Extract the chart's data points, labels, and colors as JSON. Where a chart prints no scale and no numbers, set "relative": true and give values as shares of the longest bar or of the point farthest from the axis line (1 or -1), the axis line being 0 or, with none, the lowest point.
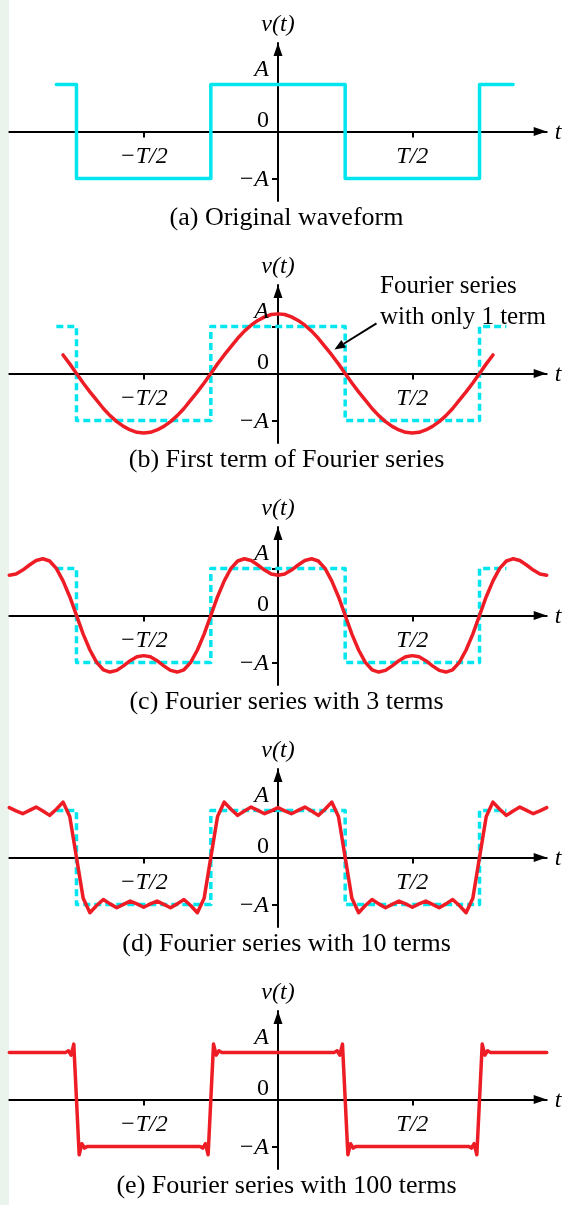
{
  "chart_data": [
    {
      "type": "line",
      "title": "(a) Original waveform",
      "xlabel": "t",
      "ylabel": "v(t)",
      "relative": true,
      "marker": "none",
      "categories": [
        null,
        null,
        null,
        null,
        null,
        null,
        null,
        null,
        null,
        null,
        null,
        null,
        null,
        null,
        null,
        null,
        null,
        null,
        null,
        null,
        "−T/2",
        null,
        null,
        null,
        null,
        null,
        null,
        null,
        null,
        null,
        null,
        null,
        null,
        null,
        null,
        null,
        null,
        null,
        null,
        null,
        null,
        null,
        null,
        null,
        null,
        null,
        null,
        null,
        null,
        null,
        null,
        null,
        null,
        null,
        null,
        null,
        null,
        null,
        null,
        null,
        "T/2",
        null,
        null,
        null,
        null,
        null,
        null,
        null,
        null,
        null,
        null,
        null,
        null,
        null,
        null,
        null,
        null,
        null,
        null,
        null,
        null
      ],
      "annotations": [
        "A",
        "0",
        "−A"
      ],
      "series": [
        {
          "type": "step",
          "color": "#00e5ee",
          "line_style": "solid",
          "values": [
            null,
            null,
            null,
            null,
            null,
            null,
            null,
            1,
            1,
            1,
            -1,
            -1,
            -1,
            -1,
            -1,
            -1,
            -1,
            -1,
            -1,
            -1,
            -1,
            -1,
            -1,
            -1,
            -1,
            -1,
            -1,
            -1,
            -1,
            -1,
            1,
            1,
            1,
            1,
            1,
            1,
            1,
            1,
            1,
            1,
            1,
            1,
            1,
            1,
            1,
            1,
            1,
            1,
            1,
            1,
            -1,
            -1,
            -1,
            -1,
            -1,
            -1,
            -1,
            -1,
            -1,
            -1,
            -1,
            -1,
            -1,
            -1,
            -1,
            -1,
            -1,
            -1,
            -1,
            -1,
            1,
            1,
            1,
            1,
            1,
            1,
            null,
            null,
            null,
            null,
            null
          ]
        }
      ]
    },
    {
      "type": "line",
      "title": "(b) First term of Fourier series",
      "xlabel": "t",
      "ylabel": "v(t)",
      "relative": true,
      "marker": "none",
      "categories": [
        null,
        null,
        null,
        null,
        null,
        null,
        null,
        null,
        null,
        null,
        null,
        null,
        null,
        null,
        null,
        null,
        null,
        null,
        null,
        null,
        "−T/2",
        null,
        null,
        null,
        null,
        null,
        null,
        null,
        null,
        null,
        null,
        null,
        null,
        null,
        null,
        null,
        null,
        null,
        null,
        null,
        null,
        null,
        null,
        null,
        null,
        null,
        null,
        null,
        null,
        null,
        null,
        null,
        null,
        null,
        null,
        null,
        null,
        null,
        null,
        null,
        "T/2",
        null,
        null,
        null,
        null,
        null,
        null,
        null,
        null,
        null,
        null,
        null,
        null,
        null,
        null,
        null,
        null,
        null,
        null,
        null,
        null
      ],
      "annotations": [
        "A",
        "0",
        "−A",
        "Fourier series\nwith only 1 term"
      ],
      "series": [
        {
          "type": "step",
          "color": "#00e5ee",
          "line_style": "dashed",
          "values": [
            null,
            null,
            null,
            null,
            null,
            null,
            null,
            0.79,
            0.79,
            0.79,
            -0.79,
            -0.79,
            -0.79,
            -0.79,
            -0.79,
            -0.79,
            -0.79,
            -0.79,
            -0.79,
            -0.79,
            -0.79,
            -0.79,
            -0.79,
            -0.79,
            -0.79,
            -0.79,
            -0.79,
            -0.79,
            -0.79,
            -0.79,
            0.79,
            0.79,
            0.79,
            0.79,
            0.79,
            0.79,
            0.79,
            0.79,
            0.79,
            0.79,
            0.79,
            0.79,
            0.79,
            0.79,
            0.79,
            0.79,
            0.79,
            0.79,
            0.79,
            0.79,
            -0.79,
            -0.79,
            -0.79,
            -0.79,
            -0.79,
            -0.79,
            -0.79,
            -0.79,
            -0.79,
            -0.79,
            -0.79,
            -0.79,
            -0.79,
            -0.79,
            -0.79,
            -0.79,
            -0.79,
            -0.79,
            -0.79,
            -0.79,
            0.79,
            0.79,
            0.79,
            0.79,
            0.79,
            null,
            null,
            null,
            null,
            null,
            null
          ]
        },
        {
          "color": "#ee1c25",
          "line_style": "solid",
          "values": [
            null,
            null,
            null,
            null,
            null,
            null,
            null,
            null,
            0.31,
            0.16,
            0,
            -0.16,
            -0.31,
            -0.45,
            -0.59,
            -0.71,
            -0.81,
            -0.89,
            -0.95,
            -0.99,
            -1,
            -0.99,
            -0.95,
            -0.89,
            -0.81,
            -0.71,
            -0.59,
            -0.45,
            -0.31,
            -0.16,
            0,
            0.16,
            0.31,
            0.45,
            0.59,
            0.71,
            0.81,
            0.89,
            0.95,
            0.99,
            1,
            0.99,
            0.95,
            0.89,
            0.81,
            0.71,
            0.59,
            0.45,
            0.31,
            0.16,
            0,
            -0.16,
            -0.31,
            -0.45,
            -0.59,
            -0.71,
            -0.81,
            -0.89,
            -0.95,
            -0.99,
            -1,
            -0.99,
            -0.95,
            -0.89,
            -0.81,
            -0.71,
            -0.59,
            -0.45,
            -0.31,
            -0.16,
            0,
            0.16,
            0.31,
            null,
            null,
            null,
            null,
            null,
            null,
            null,
            null
          ]
        }
      ]
    },
    {
      "type": "line",
      "title": "(c) Fourier series with 3 terms",
      "xlabel": "t",
      "ylabel": "v(t)",
      "relative": true,
      "marker": "none",
      "categories": [
        null,
        null,
        null,
        null,
        null,
        null,
        null,
        null,
        null,
        null,
        null,
        null,
        null,
        null,
        null,
        null,
        null,
        null,
        null,
        null,
        "−T/2",
        null,
        null,
        null,
        null,
        null,
        null,
        null,
        null,
        null,
        null,
        null,
        null,
        null,
        null,
        null,
        null,
        null,
        null,
        null,
        null,
        null,
        null,
        null,
        null,
        null,
        null,
        null,
        null,
        null,
        null,
        null,
        null,
        null,
        null,
        null,
        null,
        null,
        null,
        null,
        "T/2",
        null,
        null,
        null,
        null,
        null,
        null,
        null,
        null,
        null,
        null,
        null,
        null,
        null,
        null,
        null,
        null,
        null,
        null,
        null,
        null
      ],
      "annotations": [
        "A",
        "0",
        "−A"
      ],
      "series": [
        {
          "type": "step",
          "color": "#00e5ee",
          "line_style": "dashed",
          "values": [
            null,
            null,
            null,
            null,
            null,
            null,
            null,
            0.83,
            0.83,
            0.83,
            -0.83,
            -0.83,
            -0.83,
            -0.83,
            -0.83,
            -0.83,
            -0.83,
            -0.83,
            -0.83,
            -0.83,
            -0.83,
            -0.83,
            -0.83,
            -0.83,
            -0.83,
            -0.83,
            -0.83,
            -0.83,
            -0.83,
            -0.83,
            0.83,
            0.83,
            0.83,
            0.83,
            0.83,
            0.83,
            0.83,
            0.83,
            0.83,
            0.83,
            0.83,
            0.83,
            0.83,
            0.83,
            0.83,
            0.83,
            0.83,
            0.83,
            0.83,
            0.83,
            -0.83,
            -0.83,
            -0.83,
            -0.83,
            -0.83,
            -0.83,
            -0.83,
            -0.83,
            -0.83,
            -0.83,
            -0.83,
            -0.83,
            -0.83,
            -0.83,
            -0.83,
            -0.83,
            -0.83,
            -0.83,
            -0.83,
            -0.83,
            0.83,
            0.83,
            0.83,
            0.83,
            0.83,
            null,
            null,
            null,
            null,
            null,
            null
          ]
        },
        {
          "color": "#ee1c25",
          "line_style": "solid",
          "values": [
            0.71,
            0.73,
            0.8,
            0.89,
            0.97,
            1,
            0.96,
            0.83,
            0.61,
            0.33,
            0,
            -0.33,
            -0.61,
            -0.83,
            -0.96,
            -1,
            -0.97,
            -0.89,
            -0.8,
            -0.73,
            -0.71,
            -0.73,
            -0.8,
            -0.89,
            -0.97,
            -1,
            -0.96,
            -0.83,
            -0.61,
            -0.33,
            0,
            0.33,
            0.61,
            0.83,
            0.96,
            1,
            0.97,
            0.89,
            0.8,
            0.73,
            0.71,
            0.73,
            0.8,
            0.89,
            0.97,
            1,
            0.96,
            0.83,
            0.61,
            0.33,
            0,
            -0.33,
            -0.61,
            -0.83,
            -0.96,
            -1,
            -0.97,
            -0.89,
            -0.8,
            -0.73,
            -0.71,
            -0.73,
            -0.8,
            -0.89,
            -0.97,
            -1,
            -0.96,
            -0.83,
            -0.61,
            -0.33,
            0,
            0.33,
            0.61,
            0.83,
            0.96,
            1,
            0.97,
            0.89,
            0.8,
            0.73,
            0.71
          ]
        }
      ]
    },
    {
      "type": "line",
      "title": "(d) Fourier series with 10 terms",
      "xlabel": "t",
      "ylabel": "v(t)",
      "relative": true,
      "marker": "none",
      "categories": [
        null,
        null,
        null,
        null,
        null,
        null,
        null,
        null,
        null,
        null,
        null,
        null,
        null,
        null,
        null,
        null,
        null,
        null,
        null,
        null,
        "−T/2",
        null,
        null,
        null,
        null,
        null,
        null,
        null,
        null,
        null,
        null,
        null,
        null,
        null,
        null,
        null,
        null,
        null,
        null,
        null,
        null,
        null,
        null,
        null,
        null,
        null,
        null,
        null,
        null,
        null,
        null,
        null,
        null,
        null,
        null,
        null,
        null,
        null,
        null,
        null,
        "T/2",
        null,
        null,
        null,
        null,
        null,
        null,
        null,
        null,
        null,
        null,
        null,
        null,
        null,
        null,
        null,
        null,
        null,
        null,
        null,
        null
      ],
      "annotations": [
        "A",
        "0",
        "−A"
      ],
      "series": [
        {
          "type": "step",
          "color": "#00e5ee",
          "line_style": "dashed",
          "values": [
            null,
            null,
            null,
            null,
            null,
            null,
            null,
            0.85,
            0.85,
            0.85,
            -0.85,
            -0.85,
            -0.85,
            -0.85,
            -0.85,
            -0.85,
            -0.85,
            -0.85,
            -0.85,
            -0.85,
            -0.85,
            -0.85,
            -0.85,
            -0.85,
            -0.85,
            -0.85,
            -0.85,
            -0.85,
            -0.85,
            -0.85,
            0.85,
            0.85,
            0.85,
            0.85,
            0.85,
            0.85,
            0.85,
            0.85,
            0.85,
            0.85,
            0.85,
            0.85,
            0.85,
            0.85,
            0.85,
            0.85,
            0.85,
            0.85,
            0.85,
            0.85,
            -0.85,
            -0.85,
            -0.85,
            -0.85,
            -0.85,
            -0.85,
            -0.85,
            -0.85,
            -0.85,
            -0.85,
            -0.85,
            -0.85,
            -0.85,
            -0.85,
            -0.85,
            -0.85,
            -0.85,
            -0.85,
            -0.85,
            -0.85,
            0.85,
            0.85,
            0.85,
            0.85,
            0.85,
            null,
            null,
            null,
            null,
            null,
            null
          ]
        },
        {
          "color": "#ee1c25",
          "line_style": "solid",
          "values": [
            0.9,
            0.84,
            0.79,
            0.85,
            0.91,
            0.84,
            0.76,
            0.87,
            1,
            0.74,
            0,
            -0.74,
            -1,
            -0.87,
            -0.76,
            -0.84,
            -0.91,
            -0.85,
            -0.79,
            -0.84,
            -0.9,
            -0.84,
            -0.79,
            -0.85,
            -0.91,
            -0.84,
            -0.76,
            -0.87,
            -1,
            -0.74,
            0,
            0.74,
            1,
            0.87,
            0.76,
            0.84,
            0.91,
            0.85,
            0.79,
            0.84,
            0.9,
            0.84,
            0.79,
            0.85,
            0.91,
            0.84,
            0.76,
            0.87,
            1,
            0.74,
            0,
            -0.74,
            -1,
            -0.87,
            -0.76,
            -0.84,
            -0.91,
            -0.85,
            -0.79,
            -0.84,
            -0.9,
            -0.84,
            -0.79,
            -0.85,
            -0.91,
            -0.84,
            -0.76,
            -0.87,
            -1,
            -0.74,
            0,
            0.74,
            1,
            0.87,
            0.76,
            0.84,
            0.91,
            0.85,
            0.79,
            0.84,
            0.9
          ]
        }
      ]
    },
    {
      "type": "line",
      "title": "(e) Fourier series with 100 terms",
      "xlabel": "t",
      "ylabel": "v(t)",
      "relative": true,
      "marker": "none",
      "categories": [
        null,
        null,
        null,
        null,
        null,
        null,
        null,
        null,
        null,
        null,
        null,
        null,
        null,
        null,
        null,
        null,
        null,
        null,
        null,
        null,
        null,
        null,
        null,
        null,
        null,
        null,
        null,
        null,
        null,
        null,
        null,
        null,
        null,
        null,
        null,
        null,
        null,
        null,
        null,
        null,
        null,
        null,
        null,
        null,
        null,
        null,
        null,
        null,
        null,
        null,
        "−T/2",
        null,
        null,
        null,
        null,
        null,
        null,
        null,
        null,
        null,
        null,
        null,
        null,
        null,
        null,
        null,
        null,
        null,
        null,
        null,
        null,
        null,
        null,
        null,
        null,
        null,
        null,
        null,
        null,
        null,
        null,
        null,
        null,
        null,
        null,
        null,
        null,
        null,
        null,
        null,
        null,
        null,
        null,
        null,
        null,
        null,
        null,
        null,
        null,
        null,
        null,
        null,
        null,
        null,
        null,
        null,
        null,
        null,
        null,
        null,
        null,
        null,
        null,
        null,
        null,
        null,
        null,
        null,
        null,
        null,
        null,
        null,
        null,
        null,
        null,
        null,
        null,
        null,
        null,
        null,
        null,
        null,
        null,
        null,
        null,
        null,
        null,
        null,
        null,
        null,
        null,
        null,
        null,
        null,
        null,
        null,
        null,
        null,
        null,
        null,
        "T/2",
        null,
        null,
        null,
        null,
        null,
        null,
        null,
        null,
        null,
        null,
        null,
        null,
        null,
        null,
        null,
        null,
        null,
        null,
        null,
        null,
        null,
        null,
        null,
        null,
        null,
        null,
        null,
        null,
        null,
        null,
        null,
        null,
        null,
        null,
        null,
        null,
        null,
        null,
        null,
        null,
        null,
        null,
        null,
        null,
        null,
        null,
        null,
        null,
        null,
        null
      ],
      "annotations": [
        "A",
        "0",
        "−A"
      ],
      "series": [
        {
          "color": "#ee1c25",
          "line_style": "solid",
          "values": [
            0.85,
            0.85,
            0.85,
            0.85,
            0.85,
            0.85,
            0.85,
            0.85,
            0.85,
            0.85,
            0.85,
            0.85,
            0.85,
            0.85,
            0.85,
            0.85,
            0.85,
            0.85,
            0.85,
            0.85,
            0.85,
            0.85,
            0.88,
            0.8,
            1,
            0,
            -1,
            -0.8,
            -0.88,
            -0.85,
            -0.85,
            -0.85,
            -0.85,
            -0.85,
            -0.85,
            -0.85,
            -0.85,
            -0.85,
            -0.85,
            -0.85,
            -0.85,
            -0.85,
            -0.85,
            -0.85,
            -0.85,
            -0.85,
            -0.85,
            -0.85,
            -0.85,
            -0.85,
            -0.85,
            -0.85,
            -0.85,
            -0.85,
            -0.85,
            -0.85,
            -0.85,
            -0.85,
            -0.85,
            -0.85,
            -0.85,
            -0.85,
            -0.85,
            -0.85,
            -0.85,
            -0.85,
            -0.85,
            -0.85,
            -0.85,
            -0.85,
            -0.85,
            -0.85,
            -0.88,
            -0.8,
            -1,
            0,
            1,
            0.8,
            0.88,
            0.85,
            0.85,
            0.85,
            0.85,
            0.85,
            0.85,
            0.85,
            0.85,
            0.85,
            0.85,
            0.85,
            0.85,
            0.85,
            0.85,
            0.85,
            0.85,
            0.85,
            0.85,
            0.85,
            0.85,
            0.85,
            0.85,
            0.85,
            0.85,
            0.85,
            0.85,
            0.85,
            0.85,
            0.85,
            0.85,
            0.85,
            0.85,
            0.85,
            0.85,
            0.85,
            0.85,
            0.85,
            0.85,
            0.85,
            0.85,
            0.85,
            0.85,
            0.85,
            0.88,
            0.8,
            1,
            0,
            -1,
            -0.8,
            -0.88,
            -0.85,
            -0.85,
            -0.85,
            -0.85,
            -0.85,
            -0.85,
            -0.85,
            -0.85,
            -0.85,
            -0.85,
            -0.85,
            -0.85,
            -0.85,
            -0.85,
            -0.85,
            -0.85,
            -0.85,
            -0.85,
            -0.85,
            -0.85,
            -0.85,
            -0.85,
            -0.85,
            -0.85,
            -0.85,
            -0.85,
            -0.85,
            -0.85,
            -0.85,
            -0.85,
            -0.85,
            -0.85,
            -0.85,
            -0.85,
            -0.85,
            -0.85,
            -0.85,
            -0.85,
            -0.85,
            -0.85,
            -0.85,
            -0.85,
            -0.85,
            -0.88,
            -0.8,
            -1,
            0,
            1,
            0.8,
            0.88,
            0.85,
            0.85,
            0.85,
            0.85,
            0.85,
            0.85,
            0.85,
            0.85,
            0.85,
            0.85,
            0.85,
            0.85,
            0.85,
            0.85,
            0.85,
            0.85,
            0.85,
            0.85,
            0.85,
            0.85,
            0.85,
            0.85
          ]
        }
      ]
    }
  ]
}
